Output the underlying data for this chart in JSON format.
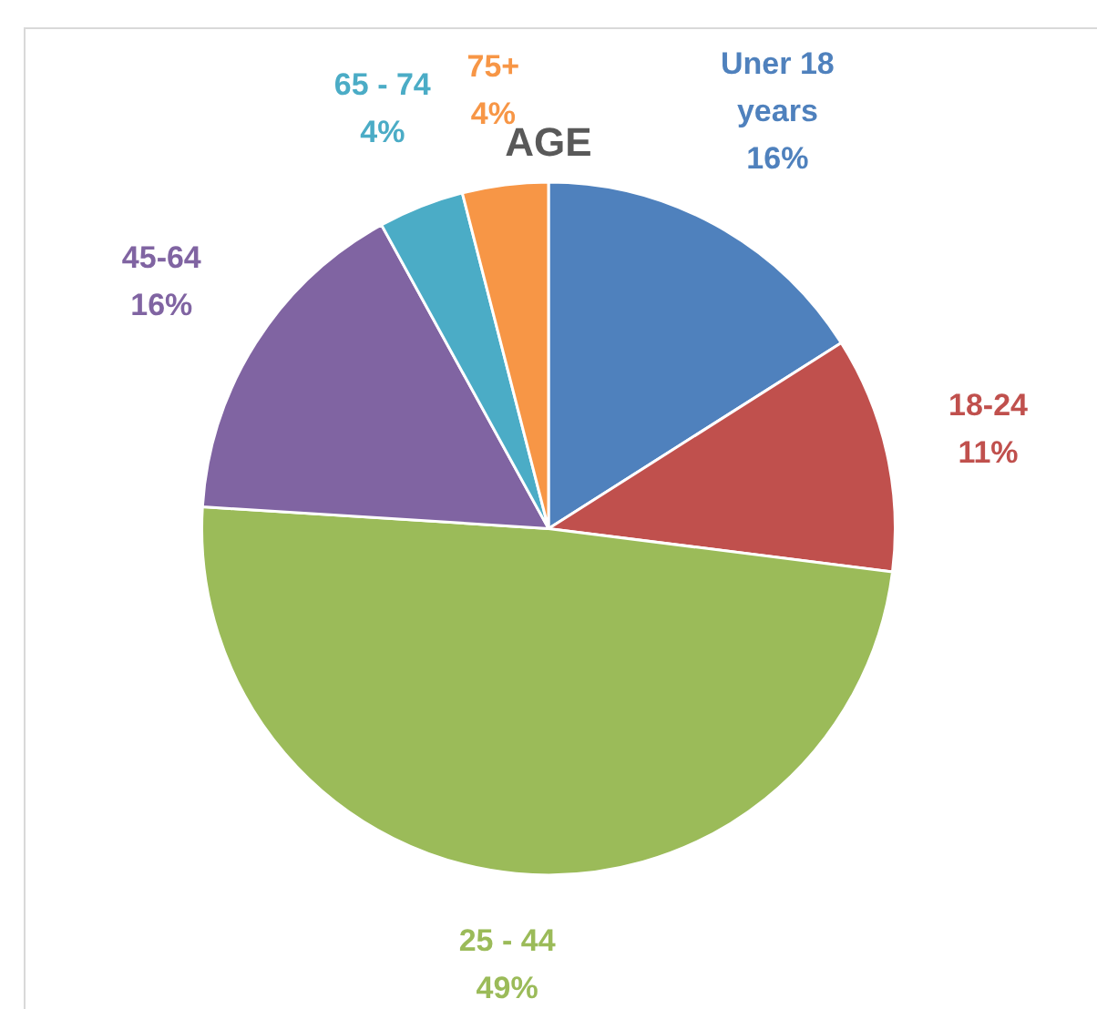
{
  "chart_data": {
    "type": "pie",
    "title": "AGE",
    "categories": [
      "Uner 18 years",
      "18-24",
      "25 - 44",
      "45-64",
      "65 - 74",
      "75+"
    ],
    "values": [
      16,
      11,
      49,
      16,
      4,
      4
    ],
    "value_labels": [
      "16%",
      "11%",
      "49%",
      "16%",
      "4%",
      "4%"
    ],
    "colors": [
      "#4f81bd",
      "#c0504d",
      "#9bbb59",
      "#8064a2",
      "#4bacc6",
      "#f79646"
    ],
    "legend": false
  }
}
